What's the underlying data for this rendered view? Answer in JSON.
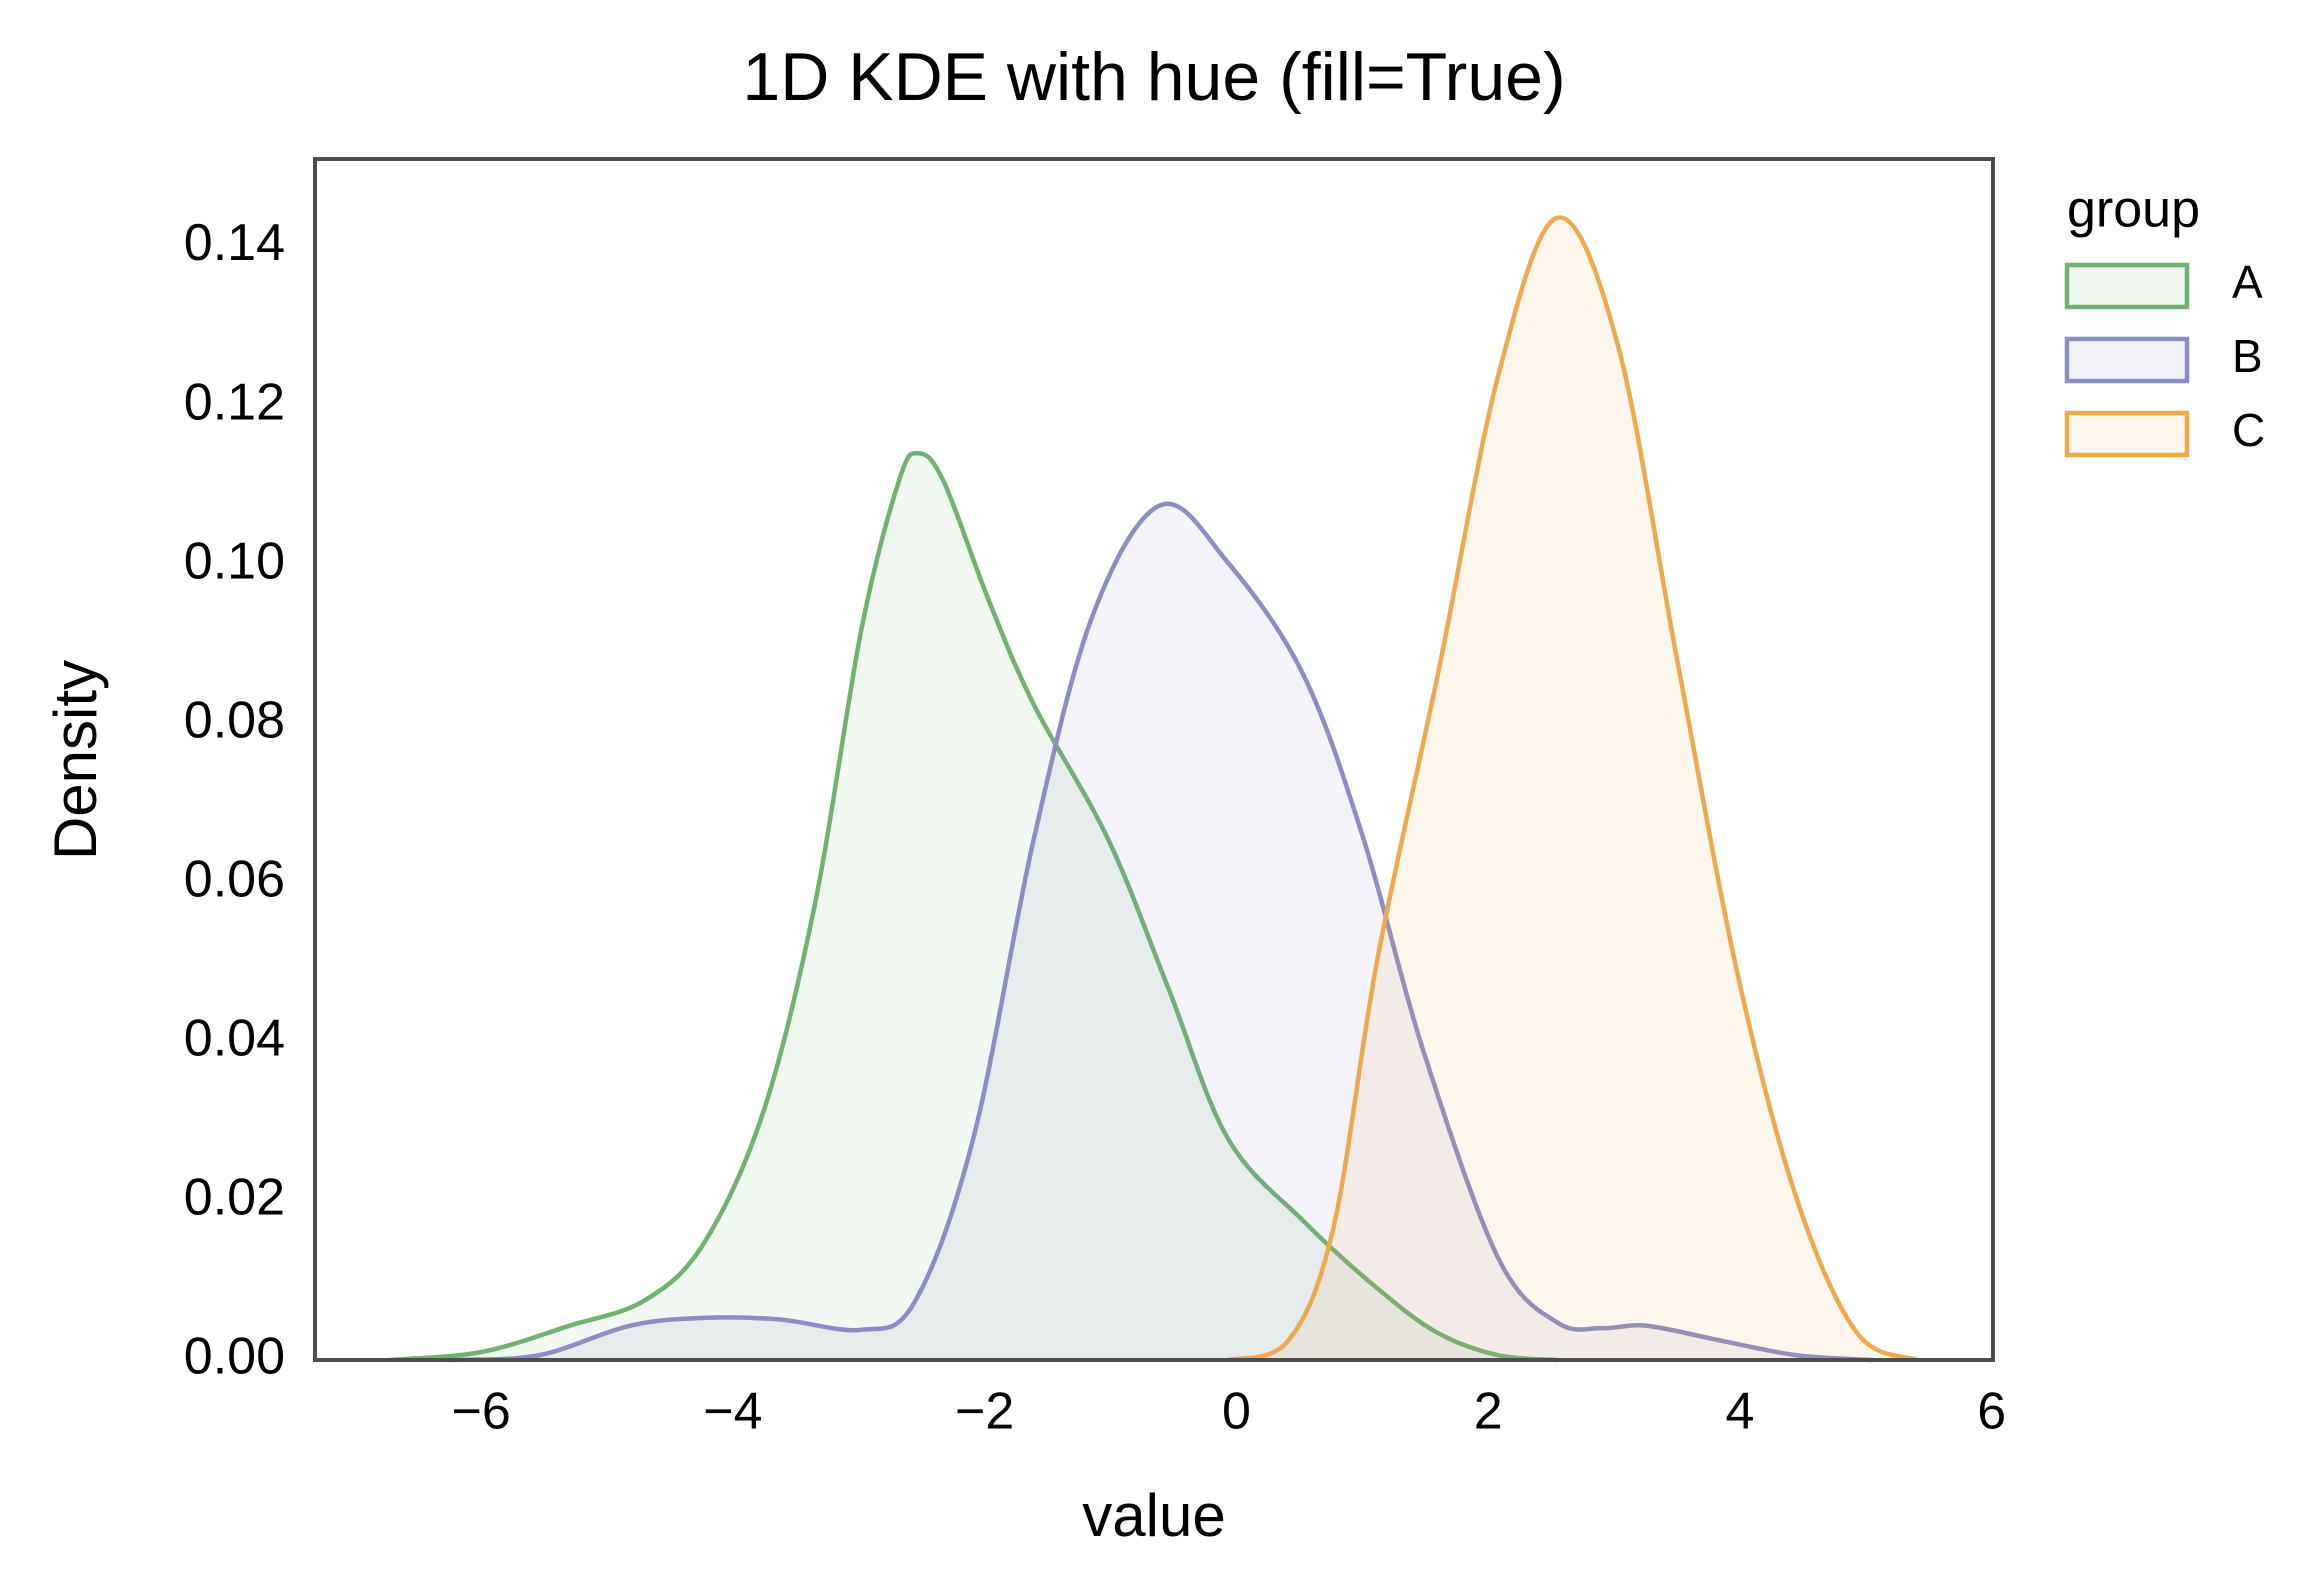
{
  "chart_data": {
    "type": "kde",
    "title": "1D KDE with hue (fill=True)",
    "x_label": "value",
    "y_label": "Density",
    "xlim": [
      -7.32,
      6.01
    ],
    "ylim": [
      0,
      0.151
    ],
    "xticks": [
      {
        "value": -6,
        "label": "−6"
      },
      {
        "value": -4,
        "label": "−4"
      },
      {
        "value": -2,
        "label": "−2"
      },
      0,
      2,
      4,
      6
    ],
    "yticks": [
      {
        "value": 0,
        "label": "0.00"
      },
      {
        "value": 0.02,
        "label": "0.02"
      },
      {
        "value": 0.04,
        "label": "0.04"
      },
      {
        "value": 0.06,
        "label": "0.06"
      },
      {
        "value": 0.08,
        "label": "0.08"
      },
      {
        "value": 0.1,
        "label": "0.10"
      },
      {
        "value": 0.12,
        "label": "0.12"
      },
      {
        "value": 0.14,
        "label": "0.14"
      }
    ],
    "grid": false,
    "fill": true,
    "legend_title": "group",
    "legend_position": "outside-right",
    "series": [
      {
        "name": "A",
        "color": "#72b073",
        "x": [
          -6.73,
          -6.0,
          -5.3,
          -4.7,
          -4.23,
          -3.75,
          -3.34,
          -2.98,
          -2.68,
          -2.53,
          -2.33,
          -1.97,
          -1.61,
          -1.02,
          -0.54,
          -0.07,
          0.53,
          1.12,
          1.6,
          2.08,
          2.55
        ],
        "values": [
          0,
          0.001,
          0.0043,
          0.0075,
          0.0147,
          0.0316,
          0.058,
          0.0918,
          0.1106,
          0.114,
          0.1106,
          0.0956,
          0.0824,
          0.0655,
          0.0467,
          0.0279,
          0.0175,
          0.009,
          0.0034,
          0.0006,
          0
        ]
      },
      {
        "name": "B",
        "color": "#8c8dc2",
        "x": [
          -6.25,
          -5.54,
          -4.82,
          -4.23,
          -3.63,
          -2.98,
          -2.56,
          -2.09,
          -1.61,
          -1.14,
          -0.6,
          -0.07,
          0.53,
          1.01,
          1.48,
          2.08,
          2.55,
          2.91,
          3.26,
          3.86,
          4.45,
          5.05
        ],
        "values": [
          0,
          0.0006,
          0.0043,
          0.0053,
          0.0051,
          0.0038,
          0.0072,
          0.0279,
          0.0655,
          0.0937,
          0.1075,
          0.1003,
          0.0862,
          0.0655,
          0.0391,
          0.0128,
          0.0047,
          0.004,
          0.0043,
          0.0024,
          0.0006,
          0
        ]
      },
      {
        "name": "C",
        "color": "#eea94f",
        "x": [
          -0.07,
          0.41,
          0.77,
          1.12,
          1.6,
          2.08,
          2.55,
          3.03,
          3.5,
          3.98,
          4.45,
          4.93,
          5.41
        ],
        "values": [
          0,
          0.0024,
          0.0166,
          0.0504,
          0.0862,
          0.1238,
          0.1436,
          0.1276,
          0.0881,
          0.0486,
          0.0203,
          0.0034,
          0
        ]
      }
    ]
  }
}
